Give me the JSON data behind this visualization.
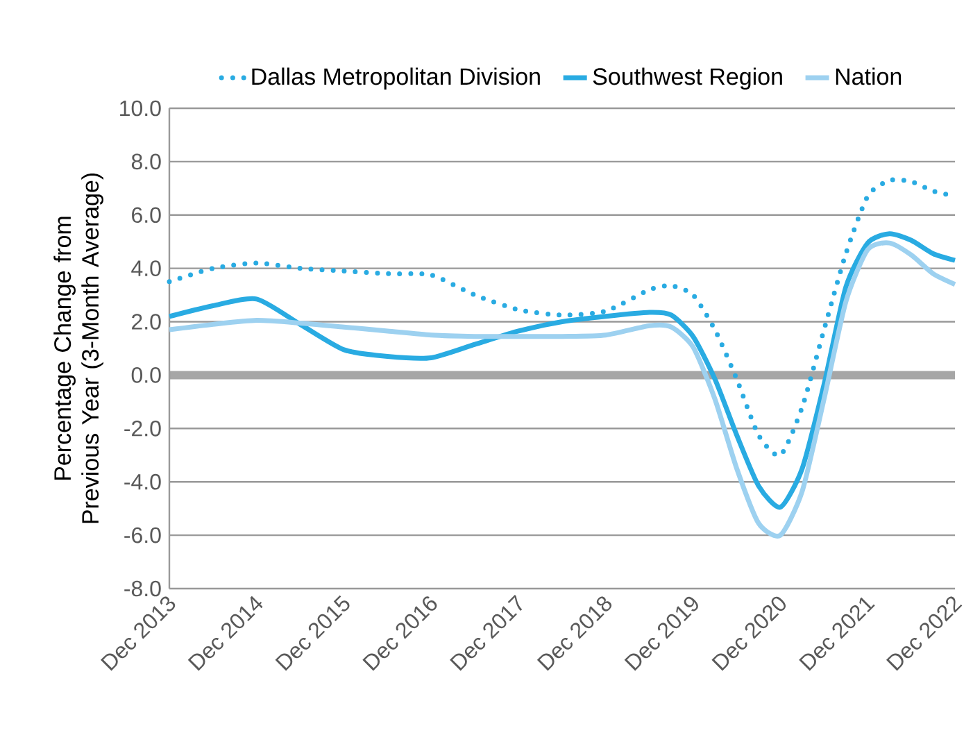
{
  "chart_data": {
    "type": "line",
    "ylabel": "Percentage Change from Previous Year (3-Month Average)",
    "x": [
      "2013-12",
      "2014-06",
      "2014-12",
      "2015-06",
      "2015-12",
      "2016-06",
      "2016-12",
      "2017-06",
      "2017-12",
      "2018-06",
      "2018-12",
      "2019-06",
      "2019-09",
      "2019-12",
      "2020-03",
      "2020-06",
      "2020-09",
      "2020-12",
      "2021-03",
      "2021-06",
      "2021-09",
      "2021-12",
      "2022-03",
      "2022-06",
      "2022-09",
      "2022-12"
    ],
    "series": [
      {
        "name": "Dallas Metropolitan Division",
        "color": "#29abe2",
        "line_style": "dotted",
        "values": [
          3.5,
          4.0,
          4.2,
          4.0,
          3.9,
          3.8,
          3.75,
          3.0,
          2.45,
          2.25,
          2.4,
          3.2,
          3.35,
          3.0,
          1.7,
          -0.15,
          -2.25,
          -3.0,
          -1.2,
          1.7,
          4.55,
          6.7,
          7.3,
          7.25,
          6.9,
          6.7
        ]
      },
      {
        "name": "Southwest Region",
        "color": "#29abe2",
        "line_style": "solid",
        "values": [
          2.2,
          2.6,
          2.85,
          1.9,
          0.95,
          0.7,
          0.65,
          1.15,
          1.65,
          2.0,
          2.2,
          2.35,
          2.25,
          1.45,
          -0.15,
          -2.25,
          -4.15,
          -4.95,
          -3.5,
          -0.35,
          3.3,
          4.95,
          5.3,
          5.05,
          4.55,
          4.3
        ]
      },
      {
        "name": "Nation",
        "color": "#9dd1f0",
        "line_style": "solid",
        "values": [
          1.7,
          1.9,
          2.05,
          1.95,
          1.8,
          1.65,
          1.5,
          1.45,
          1.45,
          1.45,
          1.5,
          1.85,
          1.8,
          1.05,
          -0.9,
          -3.5,
          -5.55,
          -6.0,
          -4.35,
          -0.9,
          2.75,
          4.7,
          4.95,
          4.5,
          3.8,
          3.4
        ]
      }
    ],
    "xlim": [
      "2013-12",
      "2022-12"
    ],
    "xticks": [
      {
        "value": "2013-12",
        "label": "Dec 2013"
      },
      {
        "value": "2014-12",
        "label": "Dec 2014"
      },
      {
        "value": "2015-12",
        "label": "Dec 2015"
      },
      {
        "value": "2016-12",
        "label": "Dec 2016"
      },
      {
        "value": "2017-12",
        "label": "Dec 2017"
      },
      {
        "value": "2018-12",
        "label": "Dec 2018"
      },
      {
        "value": "2019-12",
        "label": "Dec 2019"
      },
      {
        "value": "2020-12",
        "label": "Dec 2020"
      },
      {
        "value": "2021-12",
        "label": "Dec 2021"
      },
      {
        "value": "2022-12",
        "label": "Dec 2022"
      }
    ],
    "ylim": [
      -8,
      10
    ],
    "yticks": [
      {
        "value": -8,
        "label": "-8.0"
      },
      {
        "value": -6,
        "label": "-6.0"
      },
      {
        "value": -4,
        "label": "-4.0"
      },
      {
        "value": -2,
        "label": "-2.0"
      },
      {
        "value": 0,
        "label": "0.0"
      },
      {
        "value": 2,
        "label": "2.0"
      },
      {
        "value": 4,
        "label": "4.0"
      },
      {
        "value": 6,
        "label": "6.0"
      },
      {
        "value": 8,
        "label": "8.0"
      },
      {
        "value": 10,
        "label": "10.0"
      }
    ],
    "ref_lines": [
      {
        "axis": "y",
        "value": 0,
        "color": "#a6a6a6"
      }
    ],
    "grid": "y",
    "legend": "top",
    "marker": "none"
  }
}
